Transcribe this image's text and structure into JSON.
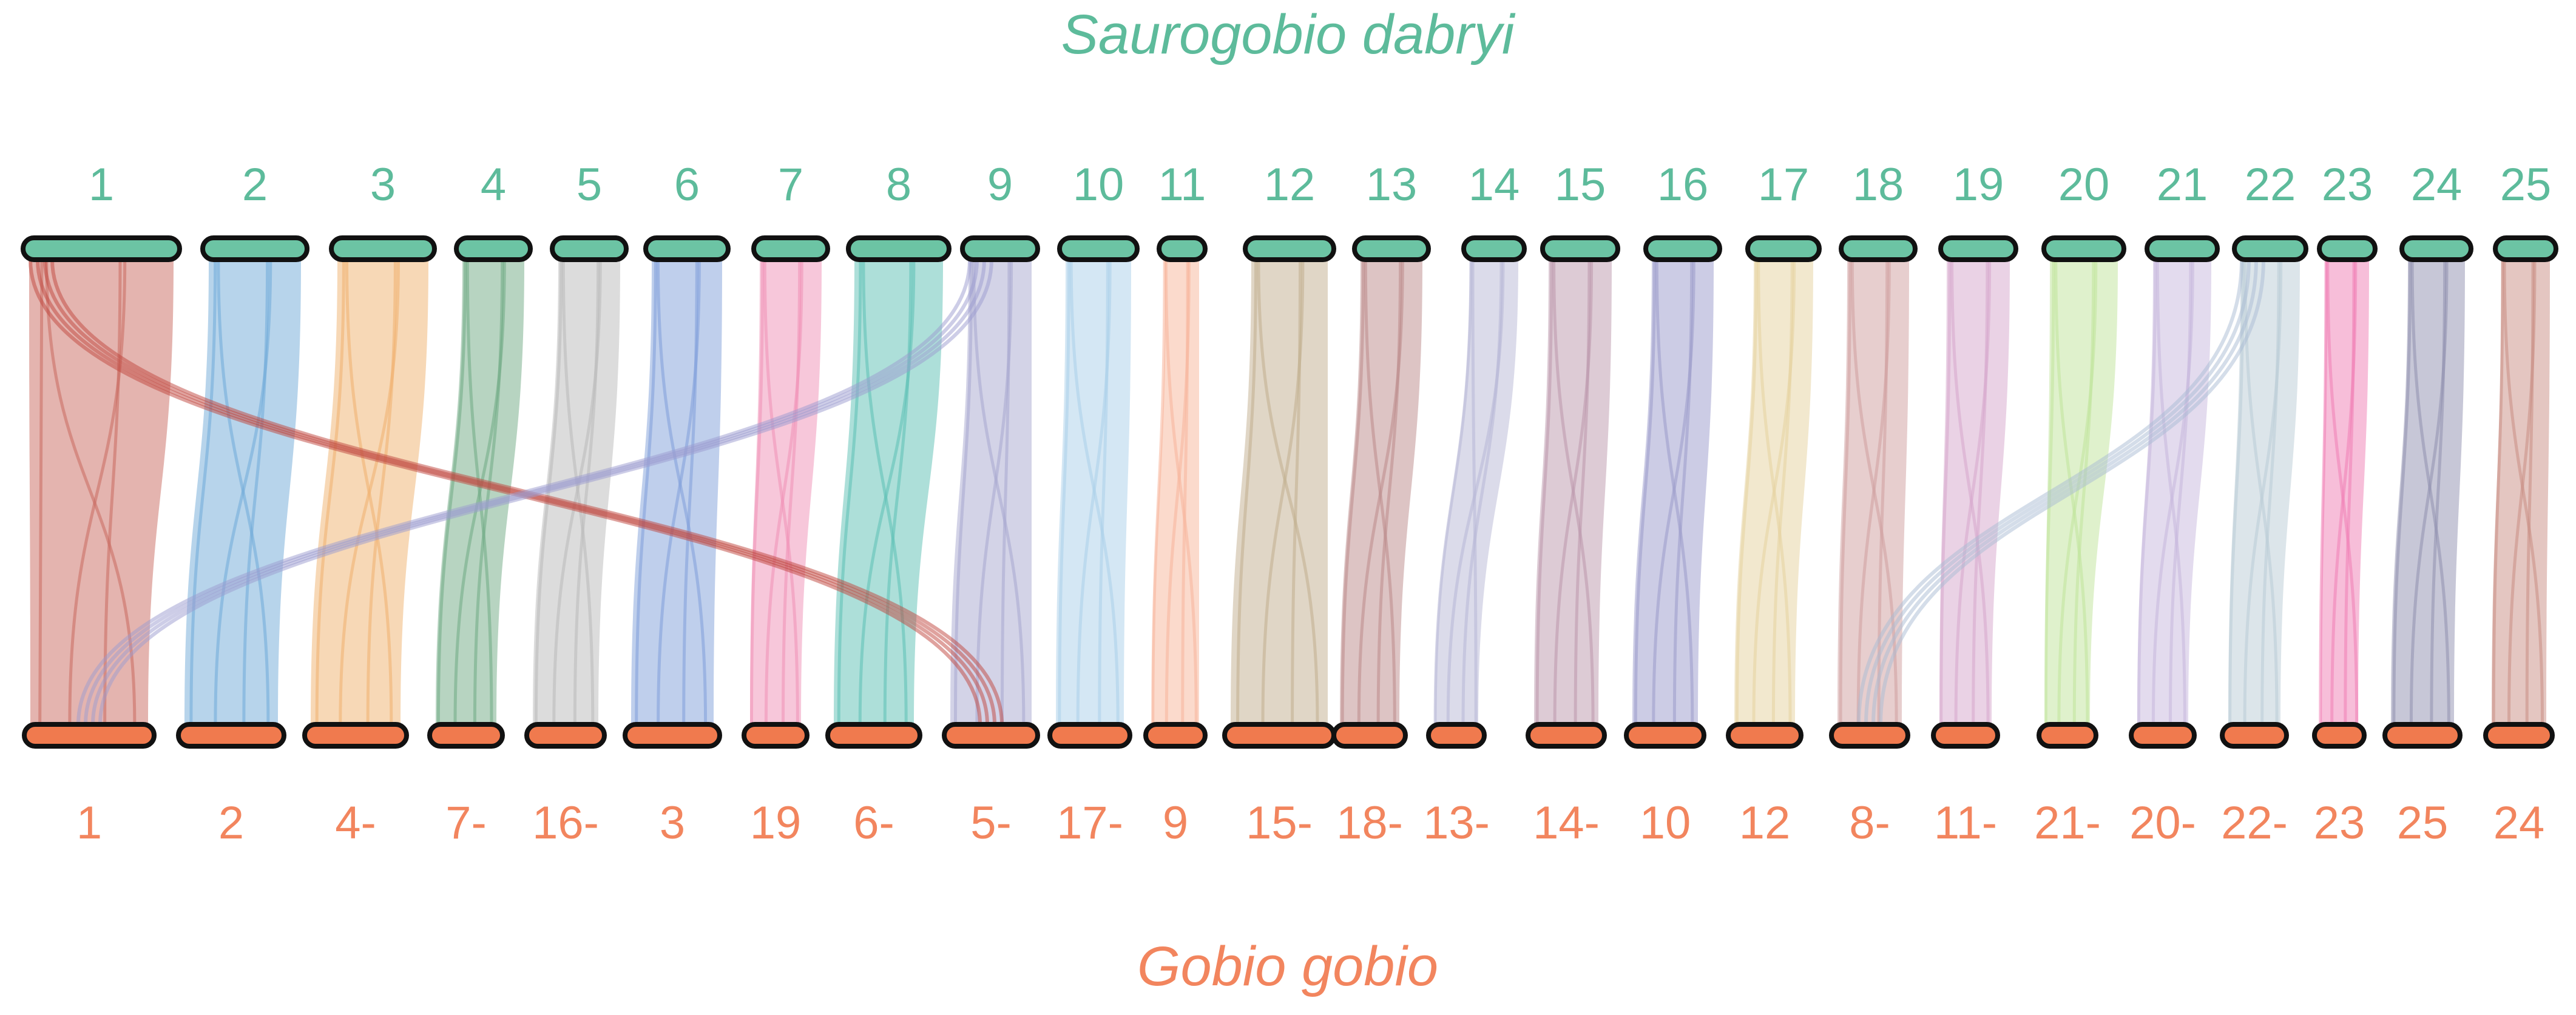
{
  "top_species": "Saurogobio dabryi",
  "bottom_species": "Gobio gobio",
  "colors": {
    "top": "#5DBB9B",
    "bottom": "#F2855E",
    "top_bar": "#6CC4A4",
    "bottom_bar": "#F07A4E",
    "outline": "#111111"
  },
  "top_chromosomes": [
    "1",
    "2",
    "3",
    "4",
    "5",
    "6",
    "7",
    "8",
    "9",
    "10",
    "11",
    "12",
    "13",
    "14",
    "15",
    "16",
    "17",
    "18",
    "19",
    "20",
    "21",
    "22",
    "23",
    "24",
    "25"
  ],
  "bottom_chromosomes": [
    "1",
    "2",
    "4-",
    "7-",
    "16-",
    "3",
    "19",
    "6-",
    "5-",
    "17-",
    "9",
    "15-",
    "18-",
    "13-",
    "14-",
    "10",
    "12",
    "8-",
    "11-",
    "21-",
    "20-",
    "22-",
    "23",
    "25",
    "24"
  ],
  "chart_data": {
    "type": "synteny",
    "blocks": [
      {
        "top": "1",
        "bottom": "1",
        "color": "#C9695F"
      },
      {
        "top": "2",
        "bottom": "2",
        "color": "#6FA9D8"
      },
      {
        "top": "3",
        "bottom": "4-",
        "color": "#F0B16E"
      },
      {
        "top": "4",
        "bottom": "7-",
        "color": "#6FAA83"
      },
      {
        "top": "5",
        "bottom": "16-",
        "color": "#B9B9B9"
      },
      {
        "top": "6",
        "bottom": "3",
        "color": "#7F9FDA"
      },
      {
        "top": "7",
        "bottom": "19",
        "color": "#F08FB6"
      },
      {
        "top": "8",
        "bottom": "6-",
        "color": "#5BC0B4"
      },
      {
        "top": "9",
        "bottom": "5-",
        "color": "#A7A7D0"
      },
      {
        "top": "10",
        "bottom": "17-",
        "color": "#A9CFEA"
      },
      {
        "top": "11",
        "bottom": "9",
        "color": "#F7B59A"
      },
      {
        "top": "12",
        "bottom": "15-",
        "color": "#C1AE8E"
      },
      {
        "top": "13",
        "bottom": "18-",
        "color": "#BB8A8A"
      },
      {
        "top": "14",
        "bottom": "13-",
        "color": "#B7B7D6"
      },
      {
        "top": "15",
        "bottom": "14-",
        "color": "#BB98AC"
      },
      {
        "top": "16",
        "bottom": "10",
        "color": "#9A9ACB"
      },
      {
        "top": "17",
        "bottom": "12",
        "color": "#E6D29E"
      },
      {
        "top": "18",
        "bottom": "8-",
        "color": "#CF9E9E"
      },
      {
        "top": "19",
        "bottom": "11-",
        "color": "#D5A6CC"
      },
      {
        "top": "20",
        "bottom": "21-",
        "color": "#C0E39A"
      },
      {
        "top": "21",
        "bottom": "20-",
        "color": "#C7B7DD"
      },
      {
        "top": "22",
        "bottom": "22-",
        "color": "#B9CCD6"
      },
      {
        "top": "23",
        "bottom": "23",
        "color": "#F07EB4"
      },
      {
        "top": "24",
        "bottom": "25",
        "color": "#8F8FAF"
      },
      {
        "top": "25",
        "bottom": "24",
        "color": "#C98E84"
      }
    ],
    "cross_links": [
      {
        "top": "1",
        "bottom": "5-",
        "color": "#C0463E"
      },
      {
        "top": "9",
        "bottom": "1",
        "color": "#9C9CD0"
      },
      {
        "top": "22",
        "bottom": "8-",
        "color": "#A9BCD4"
      }
    ]
  }
}
